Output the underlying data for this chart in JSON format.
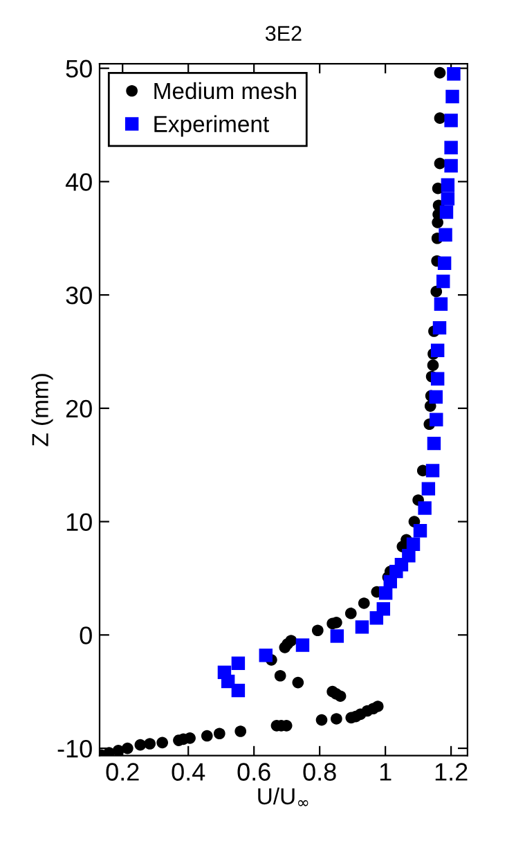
{
  "chart_data": {
    "type": "scatter",
    "title": "3E2",
    "xlabel": "U/U$_{∞}$",
    "ylabel": "Z (mm)",
    "xlim": [
      0.13,
      1.25
    ],
    "ylim": [
      -10.65,
      50.4
    ],
    "xticks": [
      0.2,
      0.4,
      0.6,
      0.8,
      1,
      1.2
    ],
    "yticks": [
      -10,
      0,
      10,
      20,
      30,
      40,
      50
    ],
    "grid": false,
    "legend": "top left",
    "series": [
      {
        "name": "Medium mesh",
        "color": "#000000",
        "marker": "circle",
        "x": [
          1.166,
          1.166,
          1.166,
          1.16,
          1.162,
          1.161,
          1.159,
          1.158,
          1.157,
          1.155,
          1.148,
          1.146,
          1.145,
          1.141,
          1.139,
          1.137,
          1.134,
          1.114,
          1.1,
          1.088,
          1.064,
          1.052,
          1.015,
          1.008,
          0.974,
          0.935,
          0.895,
          0.851,
          0.839,
          0.794,
          0.713,
          0.702,
          0.694,
          0.653,
          0.68,
          0.734,
          0.839,
          0.85,
          0.863,
          0.977,
          0.963,
          0.945,
          0.924,
          0.91,
          0.896,
          0.851,
          0.806,
          0.699,
          0.683,
          0.669,
          0.559,
          0.495,
          0.457,
          0.405,
          0.385,
          0.371,
          0.321,
          0.283,
          0.254,
          0.215,
          0.187,
          0.159,
          0.135
        ],
        "values": [
          49.6,
          45.6,
          41.6,
          39.4,
          37.9,
          37.1,
          36.4,
          35.0,
          33.0,
          30.3,
          26.8,
          24.8,
          23.8,
          22.8,
          21.1,
          20.2,
          18.6,
          14.5,
          11.9,
          10.0,
          8.4,
          7.8,
          5.6,
          5.1,
          3.8,
          2.8,
          1.9,
          1.1,
          1.0,
          0.4,
          -0.5,
          -0.8,
          -1.1,
          -2.2,
          -3.6,
          -4.2,
          -5.0,
          -5.2,
          -5.4,
          -6.3,
          -6.5,
          -6.7,
          -7.0,
          -7.2,
          -7.3,
          -7.4,
          -7.5,
          -8.0,
          -8.0,
          -8.0,
          -8.5,
          -8.7,
          -8.9,
          -9.1,
          -9.2,
          -9.3,
          -9.5,
          -9.6,
          -9.7,
          -10.0,
          -10.2,
          -10.4,
          -10.6
        ]
      },
      {
        "name": "Experiment",
        "color": "#0000ff",
        "marker": "square",
        "x": [
          1.208,
          1.204,
          1.2,
          1.2,
          1.2,
          1.19,
          1.19,
          1.186,
          1.183,
          1.18,
          1.176,
          1.169,
          1.165,
          1.159,
          1.159,
          1.154,
          1.155,
          1.148,
          1.144,
          1.131,
          1.12,
          1.106,
          1.085,
          1.071,
          1.049,
          1.033,
          1.015,
          1.001,
          0.994,
          0.973,
          0.929,
          0.853,
          0.748,
          0.636,
          0.552,
          0.51,
          0.521,
          0.552
        ],
        "values": [
          49.5,
          47.5,
          45.4,
          43.0,
          41.4,
          39.7,
          38.5,
          37.3,
          35.3,
          32.8,
          31.2,
          29.2,
          27.1,
          25.1,
          22.6,
          21.0,
          19.0,
          16.9,
          14.5,
          12.9,
          11.2,
          9.2,
          8.0,
          7.0,
          6.2,
          5.6,
          4.7,
          3.7,
          2.3,
          1.5,
          0.7,
          -0.1,
          -0.9,
          -1.8,
          -2.5,
          -3.3,
          -4.1,
          -4.9
        ]
      }
    ]
  }
}
